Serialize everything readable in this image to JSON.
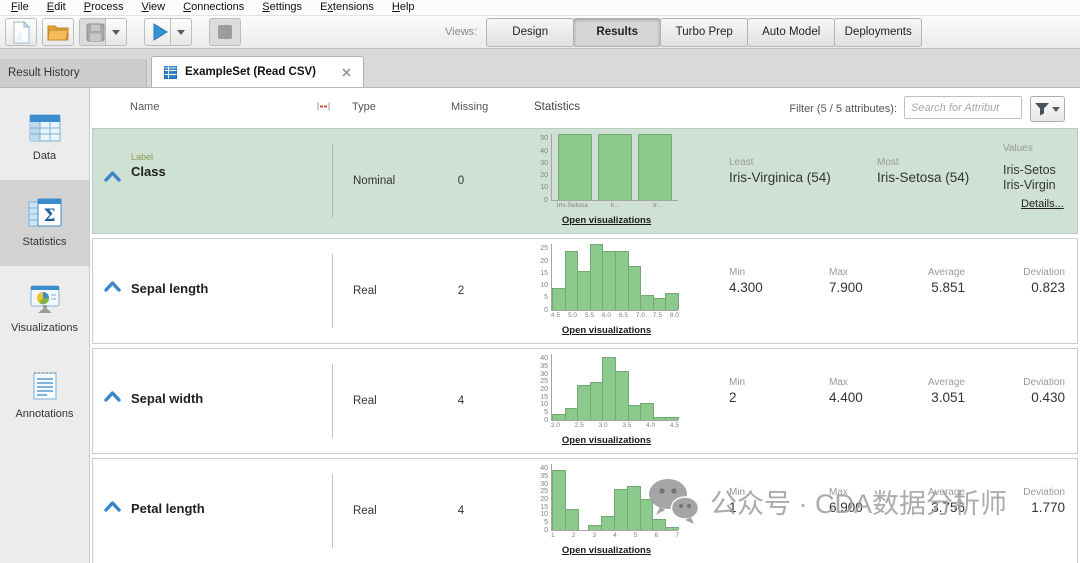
{
  "menu": {
    "items": [
      {
        "label": "File",
        "mnemonic": 0
      },
      {
        "label": "Edit",
        "mnemonic": 0
      },
      {
        "label": "Process",
        "mnemonic": 0
      },
      {
        "label": "View",
        "mnemonic": 0
      },
      {
        "label": "Connections",
        "mnemonic": 0
      },
      {
        "label": "Settings",
        "mnemonic": 0
      },
      {
        "label": "Extensions",
        "mnemonic": 1
      },
      {
        "label": "Help",
        "mnemonic": 0
      }
    ]
  },
  "toolbar": {
    "views_label": "Views:",
    "buttons": [
      {
        "name": "new-process-button",
        "icon": "new-file-icon",
        "enabled": true
      },
      {
        "name": "open-process-button",
        "icon": "open-folder-icon",
        "enabled": true
      },
      {
        "name": "save-process-button",
        "icon": "save-icon",
        "enabled": false,
        "dropdown": true
      },
      {
        "name": "run-process-button",
        "icon": "play-icon",
        "enabled": true,
        "dropdown": true,
        "gap_before": true
      },
      {
        "name": "stop-process-button",
        "icon": "stop-icon",
        "enabled": false,
        "gap_before": true
      }
    ],
    "view_buttons": [
      {
        "label": "Design",
        "active": false
      },
      {
        "label": "Results",
        "active": true
      },
      {
        "label": "Turbo Prep",
        "active": false
      },
      {
        "label": "Auto Model",
        "active": false
      },
      {
        "label": "Deployments",
        "active": false
      }
    ]
  },
  "tabs": [
    {
      "label": "Result History",
      "active": false
    },
    {
      "label": "ExampleSet (Read CSV)",
      "active": true,
      "icon": "table-icon",
      "closable": true
    }
  ],
  "sidebar": {
    "items": [
      {
        "label": "Data",
        "icon": "data-table-icon",
        "active": false
      },
      {
        "label": "Statistics",
        "icon": "statistics-sigma-icon",
        "active": true
      },
      {
        "label": "Visualizations",
        "icon": "visualizations-chart-icon",
        "active": false
      },
      {
        "label": "Annotations",
        "icon": "annotations-icon",
        "active": false
      }
    ]
  },
  "table": {
    "header": {
      "name": "Name",
      "type": "Type",
      "missing": "Missing",
      "statistics": "Statistics",
      "filter_label": "Filter (5 / 5 attributes):",
      "search_placeholder": "Search for Attribut"
    },
    "open_visualizations_label": "Open visualizations",
    "rows": [
      {
        "name": "Class",
        "role": "Label",
        "type": "Nominal",
        "missing": "0",
        "highlight": true,
        "chart": {
          "type": "bar",
          "yticks": [
            0,
            10,
            20,
            30,
            40,
            50
          ],
          "categories": [
            "Iris-Setosa",
            "Ir...",
            "Ir..."
          ],
          "values": [
            54,
            54,
            54
          ]
        },
        "stats": [
          {
            "label": "Least",
            "value": "Iris-Virginica (54)"
          },
          {
            "label": "Most",
            "value": "Iris-Setosa (54)"
          }
        ],
        "values_block": {
          "label": "Values",
          "values": [
            "Iris-Setos",
            "Iris-Virgin"
          ],
          "details_label": "Details..."
        }
      },
      {
        "name": "Sepal length",
        "type": "Real",
        "missing": "2",
        "highlight": false,
        "chart": {
          "type": "histogram",
          "yticks": [
            0,
            5,
            10,
            15,
            20,
            25
          ],
          "xticks": [
            "4.5",
            "5.0",
            "5.5",
            "6.0",
            "6.5",
            "7.0",
            "7.5",
            "8.0"
          ],
          "values": [
            9,
            24,
            16,
            27,
            24,
            24,
            18,
            6,
            5,
            7
          ]
        },
        "stats": [
          {
            "label": "Min",
            "value": "4.300"
          },
          {
            "label": "Max",
            "value": "7.900"
          },
          {
            "label": "Average",
            "value": "5.851"
          },
          {
            "label": "Deviation",
            "value": "0.823"
          }
        ]
      },
      {
        "name": "Sepal width",
        "type": "Real",
        "missing": "4",
        "highlight": false,
        "chart": {
          "type": "histogram",
          "yticks": [
            0,
            5,
            10,
            15,
            20,
            25,
            30,
            35,
            40
          ],
          "xticks": [
            "2.0",
            "2.5",
            "3.0",
            "3.5",
            "4.0",
            "4.5"
          ],
          "values": [
            4,
            8,
            23,
            25,
            41,
            32,
            10,
            11,
            2,
            2
          ]
        },
        "stats": [
          {
            "label": "Min",
            "value": "2"
          },
          {
            "label": "Max",
            "value": "4.400"
          },
          {
            "label": "Average",
            "value": "3.051"
          },
          {
            "label": "Deviation",
            "value": "0.430"
          }
        ]
      },
      {
        "name": "Petal length",
        "type": "Real",
        "missing": "4",
        "highlight": false,
        "chart": {
          "type": "histogram",
          "yticks": [
            0,
            5,
            10,
            15,
            20,
            25,
            30,
            35,
            40
          ],
          "xticks": [
            "1",
            "2",
            "3",
            "4",
            "5",
            "6",
            "7"
          ],
          "values": [
            39,
            14,
            0,
            3,
            9,
            27,
            29,
            20,
            7,
            2
          ]
        },
        "stats": [
          {
            "label": "Min",
            "value": "1"
          },
          {
            "label": "Max",
            "value": "6.900"
          },
          {
            "label": "Average",
            "value": "3.756"
          },
          {
            "label": "Deviation",
            "value": "1.770"
          }
        ]
      }
    ]
  },
  "watermark": {
    "icon": "wechat-icon",
    "text": "公众号 · CDA数据分析师"
  },
  "colors": {
    "bar_green": "#8cc98c",
    "bar_border": "#72aa72",
    "row_highlight": "#cfe1d4",
    "chevron_blue": "#3a86c8",
    "role_olive": "#8e9a52"
  }
}
